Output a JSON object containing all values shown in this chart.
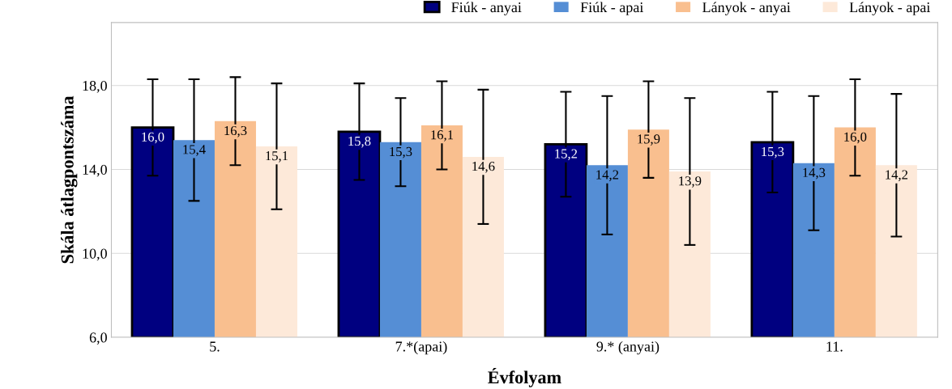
{
  "chart_data": {
    "type": "bar",
    "xlabel": "Évfolyam",
    "ylabel": "Skála átlagpontszáma",
    "categories": [
      "5.",
      "7.*(apai)",
      "9.* (anyai)",
      "11."
    ],
    "series": [
      {
        "name": "Fiúk - anyai",
        "color": "#000080",
        "values": [
          16.0,
          15.8,
          15.2,
          15.3
        ],
        "errors": [
          2.3,
          2.3,
          2.5,
          2.4
        ],
        "value_labels": [
          "16,0",
          "15,8",
          "15,2",
          "15,3"
        ]
      },
      {
        "name": "Fiúk - apai",
        "color": "#558ed5",
        "values": [
          15.4,
          15.3,
          14.2,
          14.3
        ],
        "errors": [
          2.9,
          2.1,
          3.3,
          3.2
        ],
        "value_labels": [
          "15,4",
          "15,3",
          "14,2",
          "14,3"
        ]
      },
      {
        "name": "Lányok - anyai",
        "color": "#f9bf8f",
        "values": [
          16.3,
          16.1,
          15.9,
          16.0
        ],
        "errors": [
          2.1,
          2.1,
          2.3,
          2.3
        ],
        "value_labels": [
          "16,3",
          "16,1",
          "15,9",
          "16,0"
        ]
      },
      {
        "name": "Lányok - apai",
        "color": "#fde9d9",
        "values": [
          15.1,
          14.6,
          13.9,
          14.2
        ],
        "errors": [
          3.0,
          3.2,
          3.5,
          3.4
        ],
        "value_labels": [
          "15,1",
          "14,6",
          "13,9",
          "14,2"
        ]
      }
    ],
    "ylim": [
      6,
      21
    ],
    "yticks": [
      {
        "value": 6,
        "label": "6,0"
      },
      {
        "value": 10,
        "label": "10,0"
      },
      {
        "value": 14,
        "label": "14,0"
      },
      {
        "value": 18,
        "label": "18,0"
      }
    ],
    "grid": "y",
    "legend": "top right"
  }
}
